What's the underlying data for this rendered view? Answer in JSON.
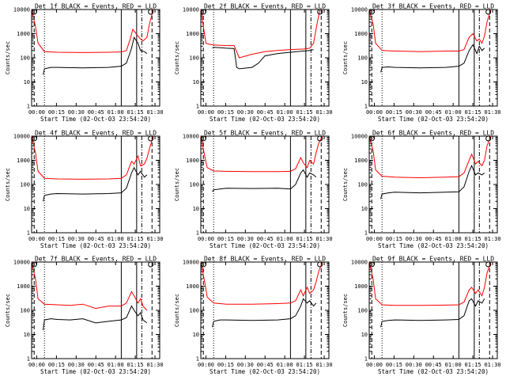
{
  "chart_data": [
    {
      "type": "line",
      "title": "Det 1f BLACK = Events, RED = LLD",
      "xlabel": "Start Time (02-Oct-03 23:54:20)",
      "ylabel": "Counts/sec",
      "yscale": "log",
      "ylim": [
        1,
        10000
      ],
      "xlim_min": [
        0,
        100
      ],
      "x_tick_labels": [
        "00:00",
        "00:15",
        "00:30",
        "00:45",
        "01:00",
        "01:15",
        "01:30"
      ],
      "y_tick_labels": [
        "1",
        "10",
        "100",
        "1000",
        "10000"
      ],
      "series": [
        {
          "color": "#ff0000",
          "x": [
            0,
            3,
            5,
            10,
            20,
            40,
            60,
            70,
            74,
            77,
            79,
            83,
            85,
            87,
            90,
            92,
            95
          ],
          "y": [
            10000,
            2000,
            400,
            180,
            170,
            165,
            170,
            175,
            200,
            600,
            1500,
            800,
            600,
            500,
            700,
            2500,
            10000
          ]
        },
        {
          "color": "#000000",
          "x": [
            9,
            10,
            15,
            20,
            40,
            60,
            70,
            74,
            78,
            80,
            83,
            85,
            88,
            90
          ],
          "y": [
            20,
            35,
            40,
            40,
            38,
            40,
            45,
            60,
            250,
            700,
            400,
            200,
            180,
            150
          ]
        }
      ],
      "markers": {
        "dashed": [
          2,
          94
        ],
        "dotted": [
          10
        ],
        "solid": [
          70,
          82
        ],
        "dash_dot": [
          86
        ]
      }
    },
    {
      "type": "line",
      "title": "Det 2f BLACK = Events, RED = LLD",
      "xlabel": "Start Time (02-Oct-03 23:54:20)",
      "ylabel": "Counts/sec",
      "yscale": "log",
      "ylim": [
        1,
        10000
      ],
      "xlim_min": [
        0,
        100
      ],
      "x_tick_labels": [
        "00:00",
        "00:15",
        "00:30",
        "00:45",
        "01:00",
        "01:15",
        "01:30"
      ],
      "y_tick_labels": [
        "1",
        "10",
        "100",
        "1000",
        "10000"
      ],
      "series": [
        {
          "color": "#ff0000",
          "x": [
            0,
            2,
            4,
            7,
            10,
            15,
            20,
            26,
            30,
            40,
            50,
            60,
            70,
            80,
            85,
            88,
            91,
            93
          ],
          "y": [
            10000,
            2000,
            400,
            360,
            340,
            330,
            320,
            320,
            100,
            140,
            180,
            200,
            220,
            230,
            250,
            400,
            3000,
            10000
          ]
        },
        {
          "color": "#000000",
          "x": [
            9,
            10,
            15,
            20,
            26,
            28,
            30,
            40,
            45,
            50,
            60,
            70,
            80,
            85,
            88
          ],
          "y": [
            250,
            270,
            260,
            250,
            240,
            40,
            35,
            40,
            60,
            120,
            150,
            170,
            190,
            200,
            220
          ]
        }
      ],
      "markers": {
        "dashed": [
          2,
          94
        ],
        "dotted": [
          10
        ],
        "solid": [
          70,
          82
        ],
        "dash_dot": [
          86
        ]
      }
    },
    {
      "type": "line",
      "title": "Det 3f BLACK = Events, RED = LLD",
      "xlabel": "Start Time (02-Oct-03 23:54:20)",
      "ylabel": "Counts/sec",
      "yscale": "log",
      "ylim": [
        1,
        10000
      ],
      "xlim_min": [
        0,
        100
      ],
      "x_tick_labels": [
        "00:00",
        "00:15",
        "00:30",
        "00:45",
        "01:00",
        "01:15",
        "01:30"
      ],
      "y_tick_labels": [
        "1",
        "10",
        "100",
        "1000",
        "10000"
      ],
      "series": [
        {
          "color": "#ff0000",
          "x": [
            0,
            3,
            5,
            10,
            20,
            40,
            60,
            70,
            74,
            78,
            81,
            84,
            86,
            88,
            90,
            92,
            95
          ],
          "y": [
            10000,
            2500,
            400,
            200,
            190,
            180,
            190,
            190,
            220,
            700,
            1000,
            500,
            600,
            400,
            800,
            3000,
            10000
          ]
        },
        {
          "color": "#000000",
          "x": [
            9,
            10,
            15,
            20,
            40,
            60,
            70,
            74,
            78,
            81,
            84,
            86,
            88,
            90
          ],
          "y": [
            25,
            40,
            42,
            40,
            38,
            40,
            45,
            60,
            200,
            350,
            150,
            300,
            200,
            250
          ]
        }
      ],
      "markers": {
        "dashed": [
          2,
          94
        ],
        "dotted": [
          10
        ],
        "solid": [
          70,
          82
        ],
        "dash_dot": [
          86
        ]
      }
    },
    {
      "type": "line",
      "title": "Det 4f BLACK = Events, RED = LLD",
      "xlabel": "Start Time (02-Oct-03 23:54:20)",
      "ylabel": "Counts/sec",
      "yscale": "log",
      "ylim": [
        1,
        10000
      ],
      "xlim_min": [
        0,
        100
      ],
      "x_tick_labels": [
        "00:00",
        "00:15",
        "00:30",
        "00:45",
        "01:00",
        "01:15",
        "01:30"
      ],
      "y_tick_labels": [
        "1",
        "10",
        "100",
        "1000",
        "10000"
      ],
      "series": [
        {
          "color": "#ff0000",
          "x": [
            0,
            3,
            5,
            10,
            20,
            40,
            60,
            70,
            74,
            78,
            80,
            83,
            85,
            88,
            90,
            92,
            95
          ],
          "y": [
            10000,
            2000,
            350,
            180,
            170,
            165,
            170,
            180,
            250,
            900,
            700,
            1500,
            600,
            700,
            1200,
            3000,
            10000
          ]
        },
        {
          "color": "#000000",
          "x": [
            9,
            10,
            15,
            20,
            40,
            60,
            70,
            74,
            78,
            80,
            83,
            85,
            88,
            90
          ],
          "y": [
            20,
            35,
            40,
            42,
            40,
            42,
            45,
            70,
            300,
            500,
            250,
            350,
            200,
            250
          ]
        }
      ],
      "markers": {
        "dashed": [
          2,
          94
        ],
        "dotted": [
          10
        ],
        "solid": [
          70,
          82
        ],
        "dash_dot": [
          86
        ]
      }
    },
    {
      "type": "line",
      "title": "Det 5f BLACK = Events, RED = LLD",
      "xlabel": "Start Time (02-Oct-03 23:54:20)",
      "ylabel": "Counts/sec",
      "yscale": "log",
      "ylim": [
        1,
        10000
      ],
      "xlim_min": [
        0,
        100
      ],
      "x_tick_labels": [
        "00:00",
        "00:15",
        "00:30",
        "00:45",
        "01:00",
        "01:15",
        "01:30"
      ],
      "y_tick_labels": [
        "1",
        "10",
        "100",
        "1000",
        "10000"
      ],
      "series": [
        {
          "color": "#ff0000",
          "x": [
            0,
            3,
            5,
            10,
            20,
            40,
            60,
            70,
            74,
            78,
            80,
            83,
            85,
            88,
            90,
            92,
            95
          ],
          "y": [
            10000,
            1500,
            500,
            360,
            350,
            340,
            340,
            350,
            450,
            1300,
            800,
            500,
            1000,
            700,
            2000,
            5000,
            10000
          ]
        },
        {
          "color": "#000000",
          "x": [
            9,
            10,
            15,
            20,
            40,
            60,
            70,
            74,
            78,
            80,
            83,
            85,
            88,
            90
          ],
          "y": [
            50,
            60,
            65,
            70,
            68,
            70,
            65,
            100,
            300,
            400,
            200,
            300,
            250,
            200
          ]
        }
      ],
      "markers": {
        "dashed": [
          2,
          94
        ],
        "dotted": [
          10
        ],
        "solid": [
          70,
          82
        ],
        "dash_dot": [
          86
        ]
      }
    },
    {
      "type": "line",
      "title": "Det 6f BLACK = Events, RED = LLD",
      "xlabel": "Start Time (02-Oct-03 23:54:20)",
      "ylabel": "Counts/sec",
      "yscale": "log",
      "ylim": [
        1,
        10000
      ],
      "xlim_min": [
        0,
        100
      ],
      "x_tick_labels": [
        "00:00",
        "00:15",
        "00:30",
        "00:45",
        "01:00",
        "01:15",
        "01:30"
      ],
      "y_tick_labels": [
        "1",
        "10",
        "100",
        "1000",
        "10000"
      ],
      "series": [
        {
          "color": "#ff0000",
          "x": [
            0,
            3,
            5,
            10,
            20,
            40,
            60,
            70,
            74,
            78,
            80,
            83,
            85,
            88,
            90,
            92,
            95
          ],
          "y": [
            10000,
            2500,
            400,
            220,
            200,
            190,
            200,
            210,
            300,
            1000,
            1800,
            700,
            900,
            600,
            1000,
            4000,
            10000
          ]
        },
        {
          "color": "#000000",
          "x": [
            9,
            10,
            15,
            20,
            40,
            60,
            70,
            74,
            78,
            80,
            83,
            85,
            88,
            90
          ],
          "y": [
            25,
            40,
            45,
            48,
            45,
            48,
            50,
            80,
            350,
            600,
            250,
            300,
            250,
            300
          ]
        }
      ],
      "markers": {
        "dashed": [
          2,
          94
        ],
        "dotted": [
          10
        ],
        "solid": [
          70,
          82
        ],
        "dash_dot": [
          86
        ]
      }
    },
    {
      "type": "line",
      "title": "Det 7f BLACK = Events, RED = LLD",
      "xlabel": "Start Time (02-Oct-03 23:54:20)",
      "ylabel": "Counts/sec",
      "yscale": "log",
      "ylim": [
        1,
        10000
      ],
      "xlim_min": [
        0,
        100
      ],
      "x_tick_labels": [
        "00:00",
        "00:15",
        "00:30",
        "00:45",
        "01:00",
        "01:15",
        "01:30"
      ],
      "y_tick_labels": [
        "1",
        "10",
        "100",
        "1000",
        "10000"
      ],
      "series": [
        {
          "color": "#ff0000",
          "x": [
            0,
            3,
            5,
            10,
            20,
            30,
            40,
            50,
            60,
            70,
            74,
            78,
            80,
            83,
            85,
            87,
            90
          ],
          "y": [
            10000,
            2000,
            300,
            180,
            170,
            160,
            180,
            120,
            150,
            150,
            200,
            600,
            400,
            200,
            300,
            150,
            100
          ]
        },
        {
          "color": "#000000",
          "x": [
            9,
            10,
            15,
            20,
            30,
            40,
            50,
            60,
            70,
            74,
            78,
            80,
            83,
            85,
            87,
            90
          ],
          "y": [
            15,
            40,
            45,
            42,
            40,
            45,
            30,
            35,
            40,
            50,
            150,
            100,
            60,
            80,
            40,
            30
          ]
        }
      ],
      "markers": {
        "dashed": [
          2,
          94
        ],
        "dotted": [
          10
        ],
        "solid": [
          70,
          82
        ],
        "dash_dot": [
          86
        ]
      }
    },
    {
      "type": "line",
      "title": "Det 8f BLACK = Events, RED = LLD",
      "xlabel": "Start Time (02-Oct-03 23:54:20)",
      "ylabel": "Counts/sec",
      "yscale": "log",
      "ylim": [
        1,
        10000
      ],
      "xlim_min": [
        0,
        100
      ],
      "x_tick_labels": [
        "00:00",
        "00:15",
        "00:30",
        "00:45",
        "01:00",
        "01:15",
        "01:30"
      ],
      "y_tick_labels": [
        "1",
        "10",
        "100",
        "1000",
        "10000"
      ],
      "series": [
        {
          "color": "#ff0000",
          "x": [
            0,
            3,
            5,
            10,
            20,
            40,
            60,
            70,
            74,
            78,
            80,
            83,
            85,
            88,
            90,
            92,
            95
          ],
          "y": [
            10000,
            1500,
            350,
            200,
            180,
            180,
            190,
            200,
            250,
            700,
            400,
            900,
            500,
            700,
            1500,
            4000,
            10000
          ]
        },
        {
          "color": "#000000",
          "x": [
            9,
            10,
            15,
            20,
            40,
            60,
            70,
            74,
            78,
            80,
            83,
            85,
            88,
            90
          ],
          "y": [
            20,
            35,
            40,
            40,
            38,
            40,
            45,
            60,
            150,
            300,
            200,
            250,
            150,
            200
          ]
        }
      ],
      "markers": {
        "dashed": [
          2,
          94
        ],
        "dotted": [
          10
        ],
        "solid": [
          70,
          82
        ],
        "dash_dot": [
          86
        ]
      }
    },
    {
      "type": "line",
      "title": "Det 9f BLACK = Events, RED = LLD",
      "xlabel": "Start Time (02-Oct-03 23:54:20)",
      "ylabel": "Counts/sec",
      "yscale": "log",
      "ylim": [
        1,
        10000
      ],
      "xlim_min": [
        0,
        100
      ],
      "x_tick_labels": [
        "00:00",
        "00:15",
        "00:30",
        "00:45",
        "01:00",
        "01:15",
        "01:30"
      ],
      "y_tick_labels": [
        "1",
        "10",
        "100",
        "1000",
        "10000"
      ],
      "series": [
        {
          "color": "#ff0000",
          "x": [
            0,
            3,
            5,
            10,
            20,
            40,
            60,
            70,
            74,
            78,
            80,
            83,
            85,
            88,
            90,
            92,
            95
          ],
          "y": [
            10000,
            2000,
            300,
            170,
            160,
            160,
            165,
            170,
            220,
            700,
            900,
            500,
            700,
            400,
            900,
            3500,
            10000
          ]
        },
        {
          "color": "#000000",
          "x": [
            9,
            10,
            15,
            20,
            40,
            60,
            70,
            74,
            78,
            80,
            83,
            85,
            88,
            90
          ],
          "y": [
            20,
            35,
            38,
            40,
            38,
            40,
            42,
            60,
            250,
            300,
            150,
            250,
            200,
            300
          ]
        }
      ],
      "markers": {
        "dashed": [
          2,
          94
        ],
        "dotted": [
          10
        ],
        "solid": [
          70,
          82
        ],
        "dash_dot": [
          86
        ]
      }
    }
  ]
}
